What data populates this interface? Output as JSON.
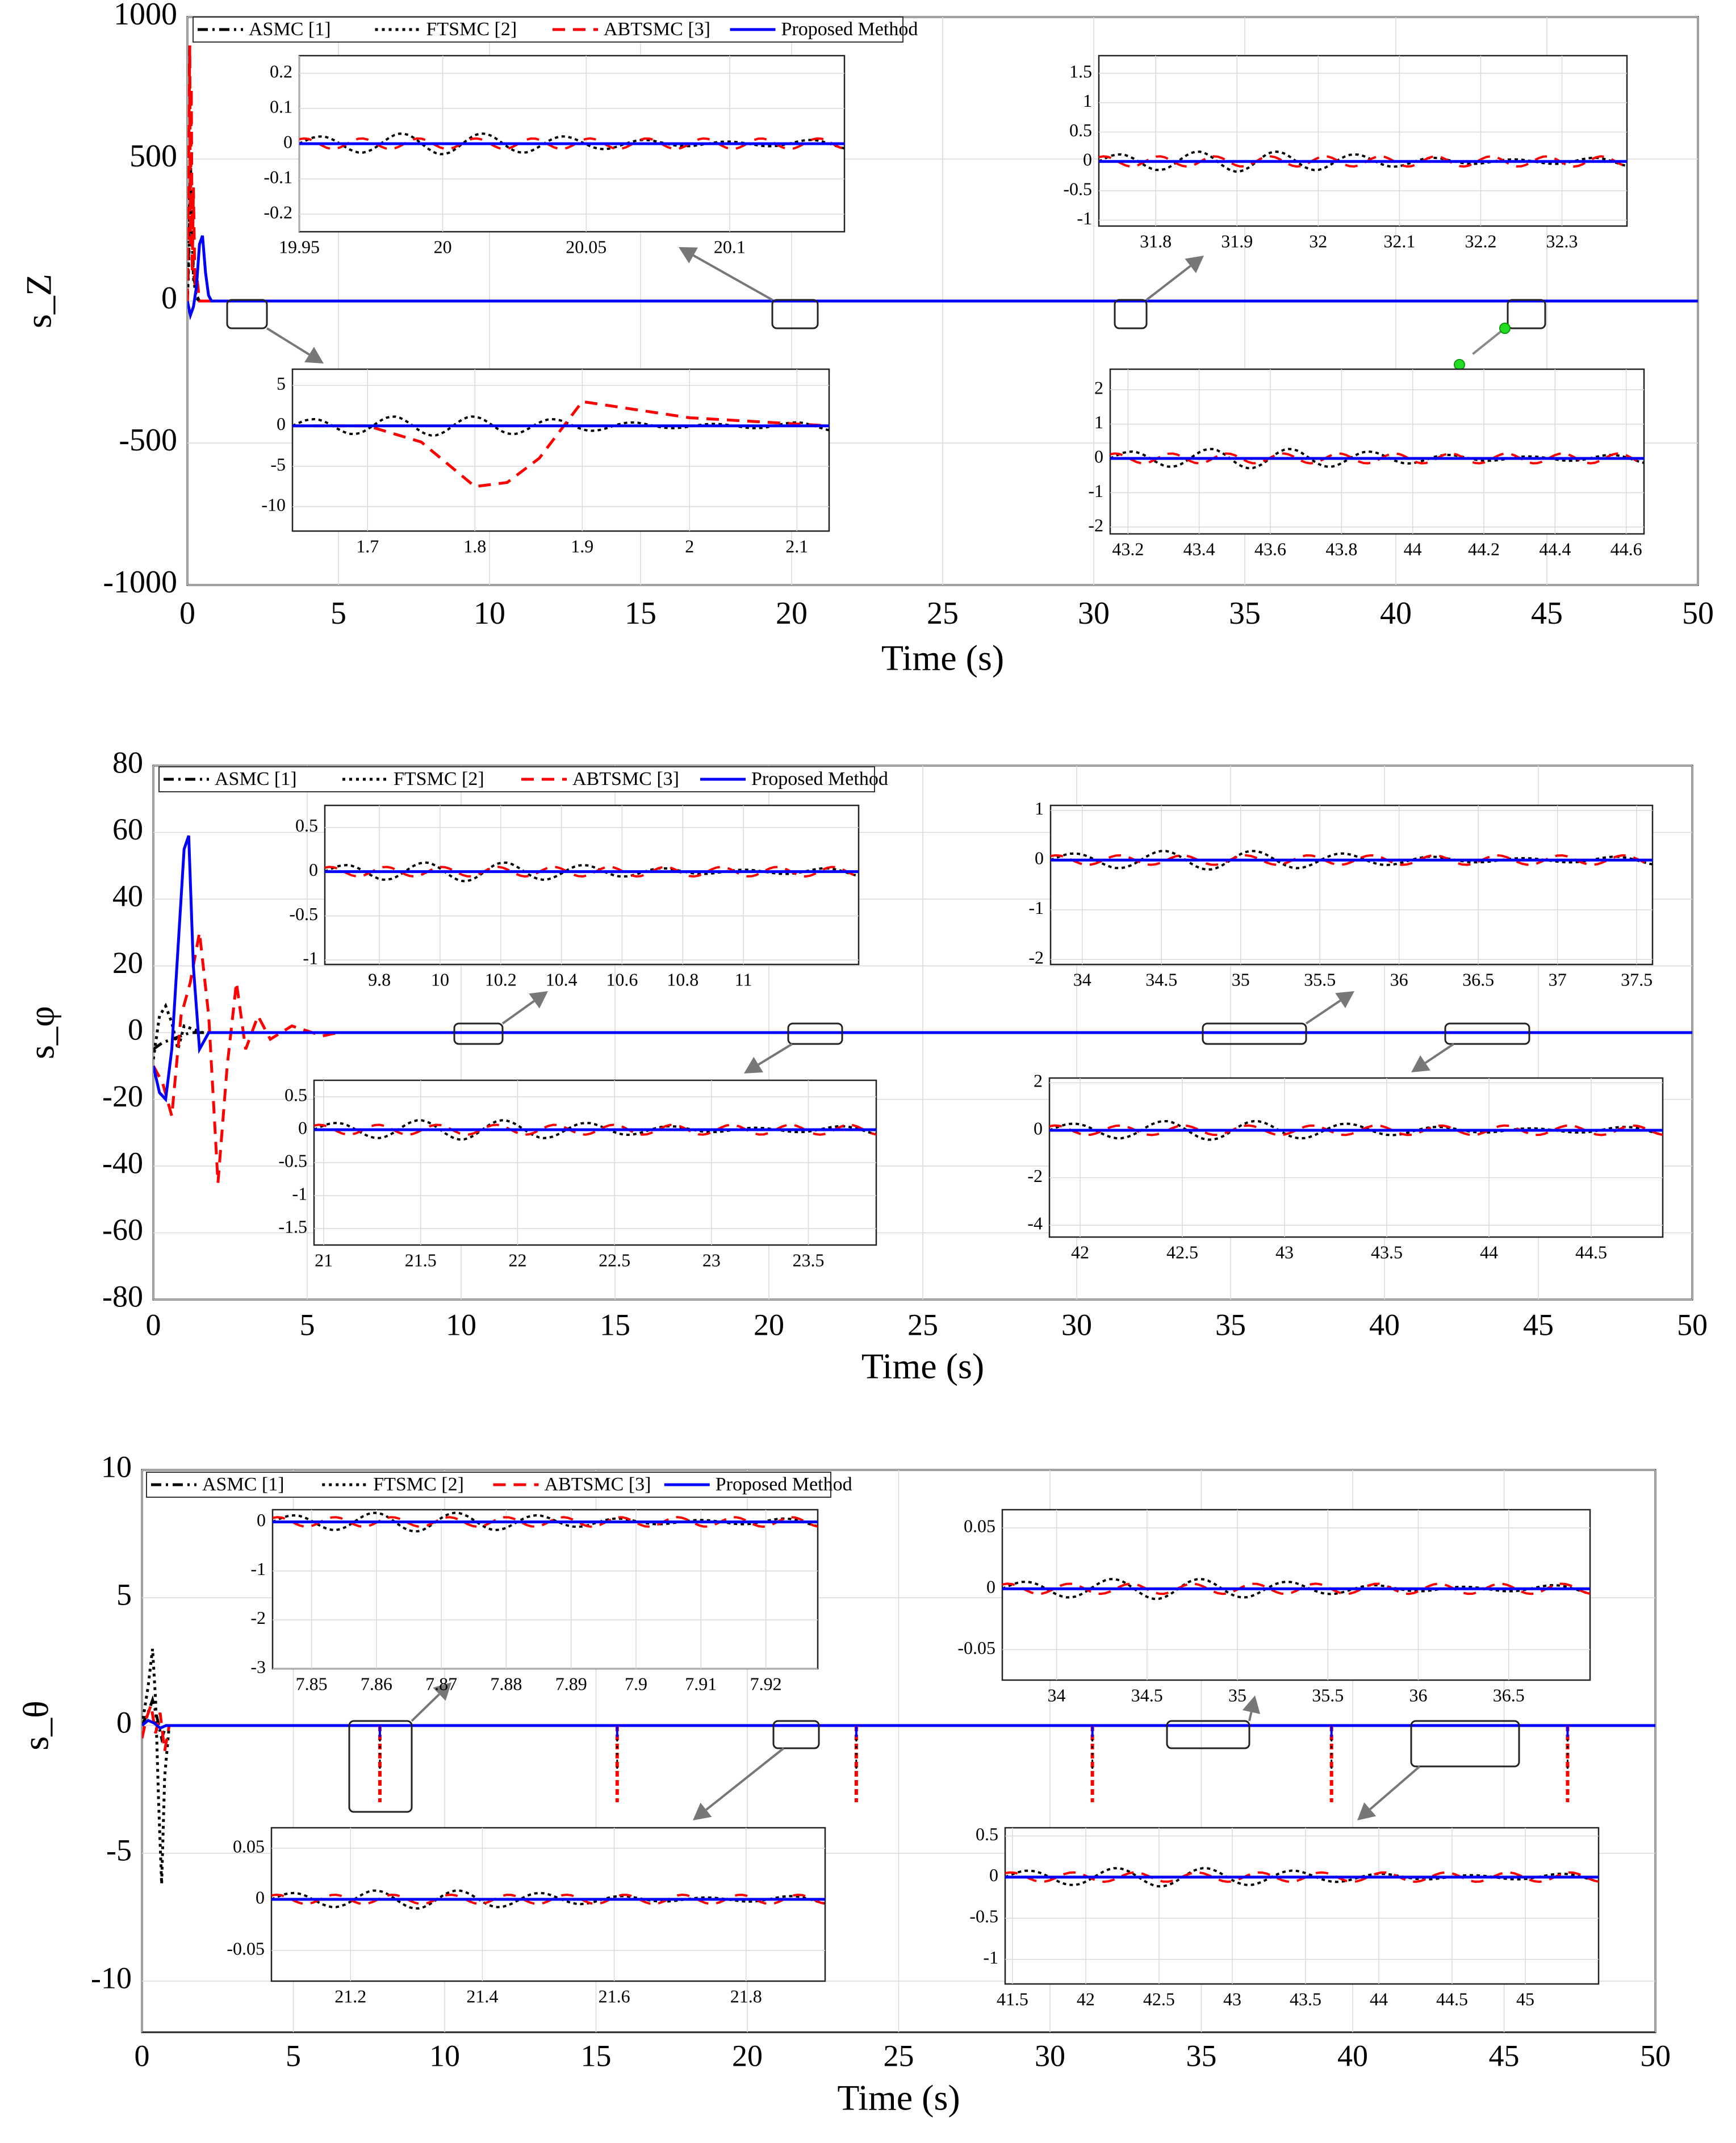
{
  "figure": {
    "title": "",
    "description_panels": 3
  },
  "chart_data": [
    {
      "type": "line",
      "panel": "s_z",
      "ylabel": "s_Z",
      "xlabel": "Time (s)",
      "xlim": [
        0,
        50
      ],
      "ylim": [
        -1000,
        1000
      ],
      "xticks": [
        0,
        5,
        10,
        15,
        20,
        25,
        30,
        35,
        40,
        45,
        50
      ],
      "yticks": [
        -1000,
        -500,
        0,
        500,
        1000
      ],
      "legend": [
        "ASMC [1]",
        "FTSMC [2]",
        "ABTSMC [3]",
        "Proposed Method"
      ],
      "series": [
        {
          "name": "ASMC [1]",
          "style": "dashdot",
          "color": "#000000",
          "x": [
            0,
            0.05,
            0.1,
            0.15,
            0.2,
            0.3,
            0.4,
            0.6,
            1,
            50
          ],
          "y": [
            0,
            200,
            500,
            300,
            100,
            20,
            0,
            0,
            0,
            0
          ]
        },
        {
          "name": "FTSMC [2]",
          "style": "dotted",
          "color": "#000000",
          "x": [
            0,
            0.05,
            0.1,
            0.15,
            0.2,
            0.3,
            0.4,
            0.6,
            1,
            50
          ],
          "y": [
            0,
            150,
            400,
            250,
            80,
            10,
            0,
            0,
            0,
            0
          ]
        },
        {
          "name": "ABTSMC [3]",
          "style": "dashed",
          "color": "#ff0000",
          "x": [
            0,
            0.05,
            0.08,
            0.1,
            0.13,
            0.16,
            0.2,
            0.25,
            0.3,
            0.4,
            0.6,
            50
          ],
          "y": [
            0,
            600,
            900,
            200,
            750,
            100,
            400,
            50,
            100,
            0,
            0,
            0
          ]
        },
        {
          "name": "Proposed Method",
          "style": "solid",
          "color": "#0000ff",
          "x": [
            0,
            0.1,
            0.2,
            0.3,
            0.4,
            0.5,
            0.6,
            0.7,
            0.8,
            1,
            50
          ],
          "y": [
            0,
            -50,
            -20,
            50,
            200,
            230,
            100,
            20,
            0,
            0,
            0
          ]
        }
      ],
      "insets": [
        {
          "name": "zoom-1",
          "xticks": [
            19.95,
            20,
            20.05,
            20.1
          ],
          "xlim": [
            19.95,
            20.14
          ],
          "yticks": [
            -0.2,
            -0.1,
            0,
            0.1,
            0.2
          ],
          "ylim": [
            -0.25,
            0.25
          ]
        },
        {
          "name": "zoom-2",
          "xticks": [
            31.8,
            31.9,
            32,
            32.1,
            32.2,
            32.3
          ],
          "xlim": [
            31.73,
            32.38
          ],
          "yticks": [
            -1,
            -0.5,
            0,
            0.5,
            1,
            1.5
          ],
          "ylim": [
            -1.1,
            1.8
          ]
        },
        {
          "name": "zoom-3",
          "xticks": [
            1.7,
            1.8,
            1.9,
            2,
            2.1
          ],
          "xlim": [
            1.63,
            2.13
          ],
          "yticks": [
            -10,
            -5,
            0,
            5
          ],
          "ylim": [
            -13,
            7
          ],
          "series_red_x": [
            1.63,
            1.7,
            1.75,
            1.8,
            1.83,
            1.86,
            1.9,
            2.0,
            2.13
          ],
          "series_red_y": [
            0,
            0,
            -2,
            -7.5,
            -7,
            -4,
            3,
            1,
            0
          ]
        },
        {
          "name": "zoom-4",
          "xticks": [
            43.2,
            43.4,
            43.6,
            43.8,
            44,
            44.2,
            44.4,
            44.6
          ],
          "xlim": [
            43.15,
            44.65
          ],
          "yticks": [
            -2,
            -1,
            0,
            1,
            2
          ],
          "ylim": [
            -2.2,
            2.6
          ]
        }
      ]
    },
    {
      "type": "line",
      "panel": "s_phi",
      "ylabel": "s_φ",
      "xlabel": "Time (s)",
      "xlim": [
        0,
        50
      ],
      "ylim": [
        -80,
        80
      ],
      "xticks": [
        0,
        5,
        10,
        15,
        20,
        25,
        30,
        35,
        40,
        45,
        50
      ],
      "yticks": [
        -80,
        -60,
        -40,
        -20,
        0,
        20,
        40,
        60,
        80
      ],
      "legend": [
        "ASMC [1]",
        "FTSMC [2]",
        "ABTSMC [3]",
        "Proposed Method"
      ],
      "series": [
        {
          "name": "ASMC [1]",
          "style": "dashdot",
          "color": "#000000",
          "x": [
            0,
            0.3,
            0.6,
            0.9,
            1.2,
            1.5,
            2,
            50
          ],
          "y": [
            -5,
            -3,
            -2,
            -1,
            0,
            0,
            0,
            0
          ]
        },
        {
          "name": "FTSMC [2]",
          "style": "dotted",
          "color": "#000000",
          "x": [
            0,
            0.2,
            0.4,
            0.6,
            0.8,
            1.0,
            1.3,
            1.6,
            2,
            50
          ],
          "y": [
            -8,
            5,
            8,
            3,
            -5,
            2,
            1,
            0,
            0,
            0
          ]
        },
        {
          "name": "ABTSMC [3]",
          "style": "dashed",
          "color": "#ff0000",
          "x": [
            0,
            0.3,
            0.6,
            0.9,
            1.2,
            1.5,
            1.8,
            2.1,
            2.4,
            2.7,
            3.0,
            3.4,
            3.8,
            4.5,
            5.5,
            6,
            50
          ],
          "y": [
            -10,
            -15,
            -25,
            5,
            15,
            30,
            5,
            -45,
            -10,
            15,
            -5,
            5,
            -2,
            2,
            -1,
            0,
            0
          ]
        },
        {
          "name": "Proposed Method",
          "style": "solid",
          "color": "#0000ff",
          "x": [
            0,
            0.2,
            0.4,
            0.6,
            0.8,
            1.0,
            1.15,
            1.3,
            1.5,
            1.8,
            2.2,
            50
          ],
          "y": [
            -10,
            -18,
            -20,
            -5,
            25,
            55,
            59,
            20,
            -5,
            0,
            0,
            0
          ]
        }
      ],
      "insets": [
        {
          "name": "zoom-1",
          "xticks": [
            9.8,
            10,
            10.2,
            10.4,
            10.6,
            10.8,
            11
          ],
          "xlim": [
            9.62,
            11.38
          ],
          "yticks": [
            -1,
            -0.5,
            0,
            0.5
          ],
          "ylim": [
            -1.05,
            0.75
          ]
        },
        {
          "name": "zoom-2",
          "xticks": [
            34,
            34.5,
            35,
            35.5,
            36,
            36.5,
            37,
            37.5
          ],
          "xlim": [
            33.8,
            37.6
          ],
          "yticks": [
            -2,
            -1,
            0,
            1
          ],
          "ylim": [
            -2.1,
            1.1
          ]
        },
        {
          "name": "zoom-3",
          "xticks": [
            21,
            21.5,
            22,
            22.5,
            23,
            23.5
          ],
          "xlim": [
            20.95,
            23.85
          ],
          "yticks": [
            -1.5,
            -1,
            -0.5,
            0,
            0.5
          ],
          "ylim": [
            -1.75,
            0.75
          ]
        },
        {
          "name": "zoom-4",
          "xticks": [
            42,
            42.5,
            43,
            43.5,
            44,
            44.5
          ],
          "xlim": [
            41.85,
            44.85
          ],
          "yticks": [
            -4,
            -2,
            0,
            2
          ],
          "ylim": [
            -4.5,
            2.2
          ]
        }
      ]
    },
    {
      "type": "line",
      "panel": "s_theta",
      "ylabel": "s_θ",
      "xlabel": "Time (s)",
      "xlim": [
        0,
        50
      ],
      "ylim": [
        -12,
        10
      ],
      "xticks": [
        0,
        5,
        10,
        15,
        20,
        25,
        30,
        35,
        40,
        45,
        50
      ],
      "yticks": [
        -10,
        -5,
        0,
        5,
        10
      ],
      "legend": [
        "ASMC [1]",
        "FTSMC [2]",
        "ABTSMC [3]",
        "Proposed Method"
      ],
      "series": [
        {
          "name": "ASMC [1]",
          "style": "dashdot",
          "color": "#000000",
          "x": [
            0,
            0.2,
            0.35,
            0.5,
            0.65,
            0.8,
            1,
            50
          ],
          "y": [
            0,
            0.5,
            1,
            0.3,
            -0.5,
            0,
            0,
            0
          ]
        },
        {
          "name": "FTSMC [2]",
          "style": "dotted",
          "color": "#000000",
          "x": [
            0,
            0.2,
            0.35,
            0.45,
            0.55,
            0.65,
            0.75,
            0.9,
            50
          ],
          "y": [
            0,
            1.5,
            3,
            1,
            -3,
            -6.2,
            -2,
            0,
            0
          ]
        },
        {
          "name": "ABTSMC [3]",
          "style": "dashed",
          "color": "#ff0000",
          "x": [
            0,
            0.15,
            0.3,
            0.45,
            0.6,
            0.75,
            0.9,
            50
          ],
          "y": [
            -0.5,
            0.3,
            0.8,
            -0.3,
            0.5,
            -1,
            0,
            0
          ]
        },
        {
          "name": "Proposed Method",
          "style": "solid",
          "color": "#0000ff",
          "x": [
            0,
            0.2,
            0.4,
            0.6,
            0.8,
            1,
            50
          ],
          "y": [
            0,
            0.2,
            0.1,
            -0.1,
            0,
            0,
            0
          ]
        }
      ],
      "spikes": [
        7.86,
        15.7,
        23.6,
        31.4,
        39.3,
        47.1
      ],
      "spike_depth": -3,
      "insets": [
        {
          "name": "zoom-1",
          "xticks": [
            7.85,
            7.86,
            7.87,
            7.88,
            7.89,
            7.9,
            7.91,
            7.92
          ],
          "xlim": [
            7.844,
            7.928
          ],
          "yticks": [
            -3,
            -2,
            -1,
            0
          ],
          "ylim": [
            -3,
            0.25
          ]
        },
        {
          "name": "zoom-2",
          "xticks": [
            34,
            34.5,
            35,
            35.5,
            36,
            36.5
          ],
          "xlim": [
            33.7,
            36.95
          ],
          "yticks": [
            -0.05,
            0,
            0.05
          ],
          "ylim": [
            -0.075,
            0.065
          ]
        },
        {
          "name": "zoom-3",
          "xticks": [
            21.2,
            21.4,
            21.6,
            21.8
          ],
          "xlim": [
            21.08,
            21.92
          ],
          "yticks": [
            -0.05,
            0,
            0.05
          ],
          "ylim": [
            -0.08,
            0.07
          ]
        },
        {
          "name": "zoom-4",
          "xticks": [
            41.5,
            42,
            42.5,
            43,
            43.5,
            44,
            44.5,
            45
          ],
          "xlim": [
            41.45,
            45.5
          ],
          "yticks": [
            -1,
            -0.5,
            0,
            0.5
          ],
          "ylim": [
            -1.3,
            0.6
          ]
        }
      ]
    }
  ]
}
